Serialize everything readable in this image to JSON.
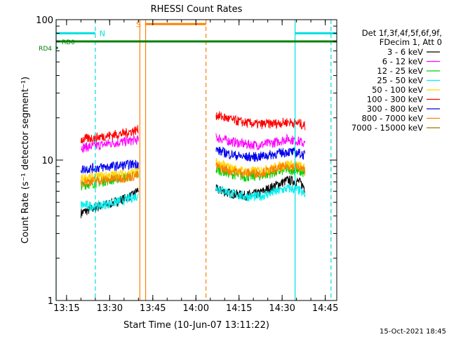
{
  "chart_data": {
    "type": "line",
    "title": "RHESSI Count Rates",
    "xlabel": "Start Time (10-Jun-07 13:11:22)",
    "ylabel": "Count Rate (s⁻¹ detector segment⁻¹)",
    "yscale": "log",
    "ylim": [
      1,
      100
    ],
    "xlim": [
      "13:11:22",
      "14:49:00"
    ],
    "x_ticks": [
      "13:15",
      "13:30",
      "13:45",
      "14:00",
      "14:15",
      "14:30",
      "14:45"
    ],
    "y_ticks": [
      "1",
      "10",
      "100"
    ],
    "timestamp": "15-Oct-2021 18:45",
    "legend_header": [
      "Det 1f,3f,4f,5f,6f,9f,",
      "FDecim 1, Att 0"
    ],
    "series": [
      {
        "name": "3 - 6 keV",
        "color": "#000000",
        "segments": [
          {
            "x": [
              "13:20",
              "13:25",
              "13:30",
              "13:35",
              "13:38",
              "13:40"
            ],
            "y": [
              4.2,
              4.6,
              4.9,
              5.3,
              5.6,
              6.2
            ]
          },
          {
            "x": [
              "14:07",
              "14:12",
              "14:17",
              "14:22",
              "14:27",
              "14:32",
              "14:36",
              "14:38"
            ],
            "y": [
              6.2,
              5.8,
              5.6,
              5.8,
              6.5,
              7.2,
              7.0,
              6.3
            ]
          }
        ]
      },
      {
        "name": "6 - 12 keV",
        "color": "#ff00ff",
        "segments": [
          {
            "x": [
              "13:20",
              "13:25",
              "13:30",
              "13:35",
              "13:40"
            ],
            "y": [
              12.3,
              12.6,
              13.2,
              13.5,
              14.0
            ]
          },
          {
            "x": [
              "14:07",
              "14:12",
              "14:17",
              "14:22",
              "14:27",
              "14:32",
              "14:36",
              "14:38"
            ],
            "y": [
              14.5,
              13.6,
              13.0,
              12.8,
              13.3,
              14.2,
              13.6,
              13.0
            ]
          }
        ]
      },
      {
        "name": "12 - 25 keV",
        "color": "#00d000",
        "segments": [
          {
            "x": [
              "13:20",
              "13:25",
              "13:30",
              "13:35",
              "13:40"
            ],
            "y": [
              6.6,
              6.9,
              7.2,
              7.5,
              7.9
            ]
          },
          {
            "x": [
              "14:07",
              "14:12",
              "14:17",
              "14:22",
              "14:27",
              "14:32",
              "14:36",
              "14:38"
            ],
            "y": [
              8.6,
              8.0,
              7.6,
              7.7,
              8.1,
              8.6,
              8.3,
              8.0
            ]
          }
        ]
      },
      {
        "name": "25 - 50 keV",
        "color": "#00eeee",
        "segments": [
          {
            "x": [
              "13:20",
              "13:25",
              "13:30",
              "13:35",
              "13:40"
            ],
            "y": [
              4.8,
              4.7,
              4.9,
              5.2,
              5.6
            ]
          },
          {
            "x": [
              "14:07",
              "14:12",
              "14:17",
              "14:22",
              "14:27",
              "14:32",
              "14:36",
              "14:38"
            ],
            "y": [
              6.4,
              5.8,
              5.5,
              5.5,
              5.9,
              6.3,
              6.1,
              5.6
            ]
          }
        ]
      },
      {
        "name": "50 - 100 keV",
        "color": "#ffd700",
        "segments": [
          {
            "x": [
              "13:20",
              "13:25",
              "13:30",
              "13:35",
              "13:40"
            ],
            "y": [
              7.4,
              7.6,
              7.8,
              8.0,
              8.3
            ]
          },
          {
            "x": [
              "14:07",
              "14:12",
              "14:17",
              "14:22",
              "14:27",
              "14:32",
              "14:36",
              "14:38"
            ],
            "y": [
              9.6,
              8.8,
              8.3,
              8.4,
              8.8,
              9.4,
              9.1,
              8.7
            ]
          }
        ]
      },
      {
        "name": "100 - 300 keV",
        "color": "#ff0000",
        "segments": [
          {
            "x": [
              "13:20",
              "13:25",
              "13:30",
              "13:35",
              "13:40"
            ],
            "y": [
              14.0,
              14.5,
              15.0,
              15.5,
              16.5
            ]
          },
          {
            "x": [
              "14:07",
              "14:12",
              "14:17",
              "14:22",
              "14:27",
              "14:32",
              "14:36",
              "14:38"
            ],
            "y": [
              21.0,
              19.5,
              18.5,
              18.0,
              18.2,
              18.7,
              18.3,
              17.5
            ]
          }
        ]
      },
      {
        "name": "300 - 800 keV",
        "color": "#0000ee",
        "segments": [
          {
            "x": [
              "13:20",
              "13:25",
              "13:30",
              "13:35",
              "13:40"
            ],
            "y": [
              8.6,
              8.8,
              9.0,
              9.2,
              9.5
            ]
          },
          {
            "x": [
              "14:07",
              "14:12",
              "14:17",
              "14:22",
              "14:27",
              "14:32",
              "14:36",
              "14:38"
            ],
            "y": [
              11.8,
              11.0,
              10.5,
              10.6,
              11.0,
              11.5,
              11.2,
              10.8
            ]
          }
        ]
      },
      {
        "name": "800 - 7000 keV",
        "color": "#ff8000",
        "segments": [
          {
            "x": [
              "13:20",
              "13:25",
              "13:30",
              "13:35",
              "13:40"
            ],
            "y": [
              7.0,
              7.1,
              7.3,
              7.5,
              7.8
            ]
          },
          {
            "x": [
              "14:07",
              "14:12",
              "14:17",
              "14:22",
              "14:27",
              "14:32",
              "14:36",
              "14:38"
            ],
            "y": [
              9.0,
              8.4,
              8.1,
              8.1,
              8.5,
              9.1,
              8.8,
              8.4
            ]
          }
        ]
      },
      {
        "name": "7000 - 15000 keV",
        "color": "#a07000",
        "segments": []
      }
    ],
    "attenuator_rows": [
      {
        "label": "RD0",
        "color": "#008000",
        "x": [
          "13:11:22",
          "14:49:00"
        ],
        "y": 70
      },
      {
        "label": "RD4",
        "color": "#008000",
        "x": [
          "13:11:22",
          "13:12:00"
        ],
        "y": 63
      }
    ],
    "intervals": [
      {
        "label": "N",
        "color": "#00e0e0",
        "x": [
          "13:11:22",
          "13:25:00"
        ],
        "y": 80
      },
      {
        "label": "",
        "color": "#00e0e0",
        "x": [
          "14:34:30",
          "14:49:00"
        ],
        "y": 80
      },
      {
        "label": "S",
        "color": "#ff8000",
        "x": [
          "13:42:30",
          "14:03:30"
        ],
        "y": 93
      }
    ],
    "vertical_lines": [
      {
        "x": "13:11:22",
        "color": "#00e0e0",
        "style": "solid"
      },
      {
        "x": "13:25:00",
        "color": "#00e0e0",
        "style": "dashed"
      },
      {
        "x": "13:40:30",
        "color": "#ff8000",
        "style": "solid"
      },
      {
        "x": "13:42:30",
        "color": "#ff8000",
        "style": "solid"
      },
      {
        "x": "14:03:30",
        "color": "#ff8000",
        "style": "dashed"
      },
      {
        "x": "14:34:30",
        "color": "#00e0e0",
        "style": "solid"
      },
      {
        "x": "14:47:00",
        "color": "#00e0e0",
        "style": "dashed"
      }
    ]
  }
}
